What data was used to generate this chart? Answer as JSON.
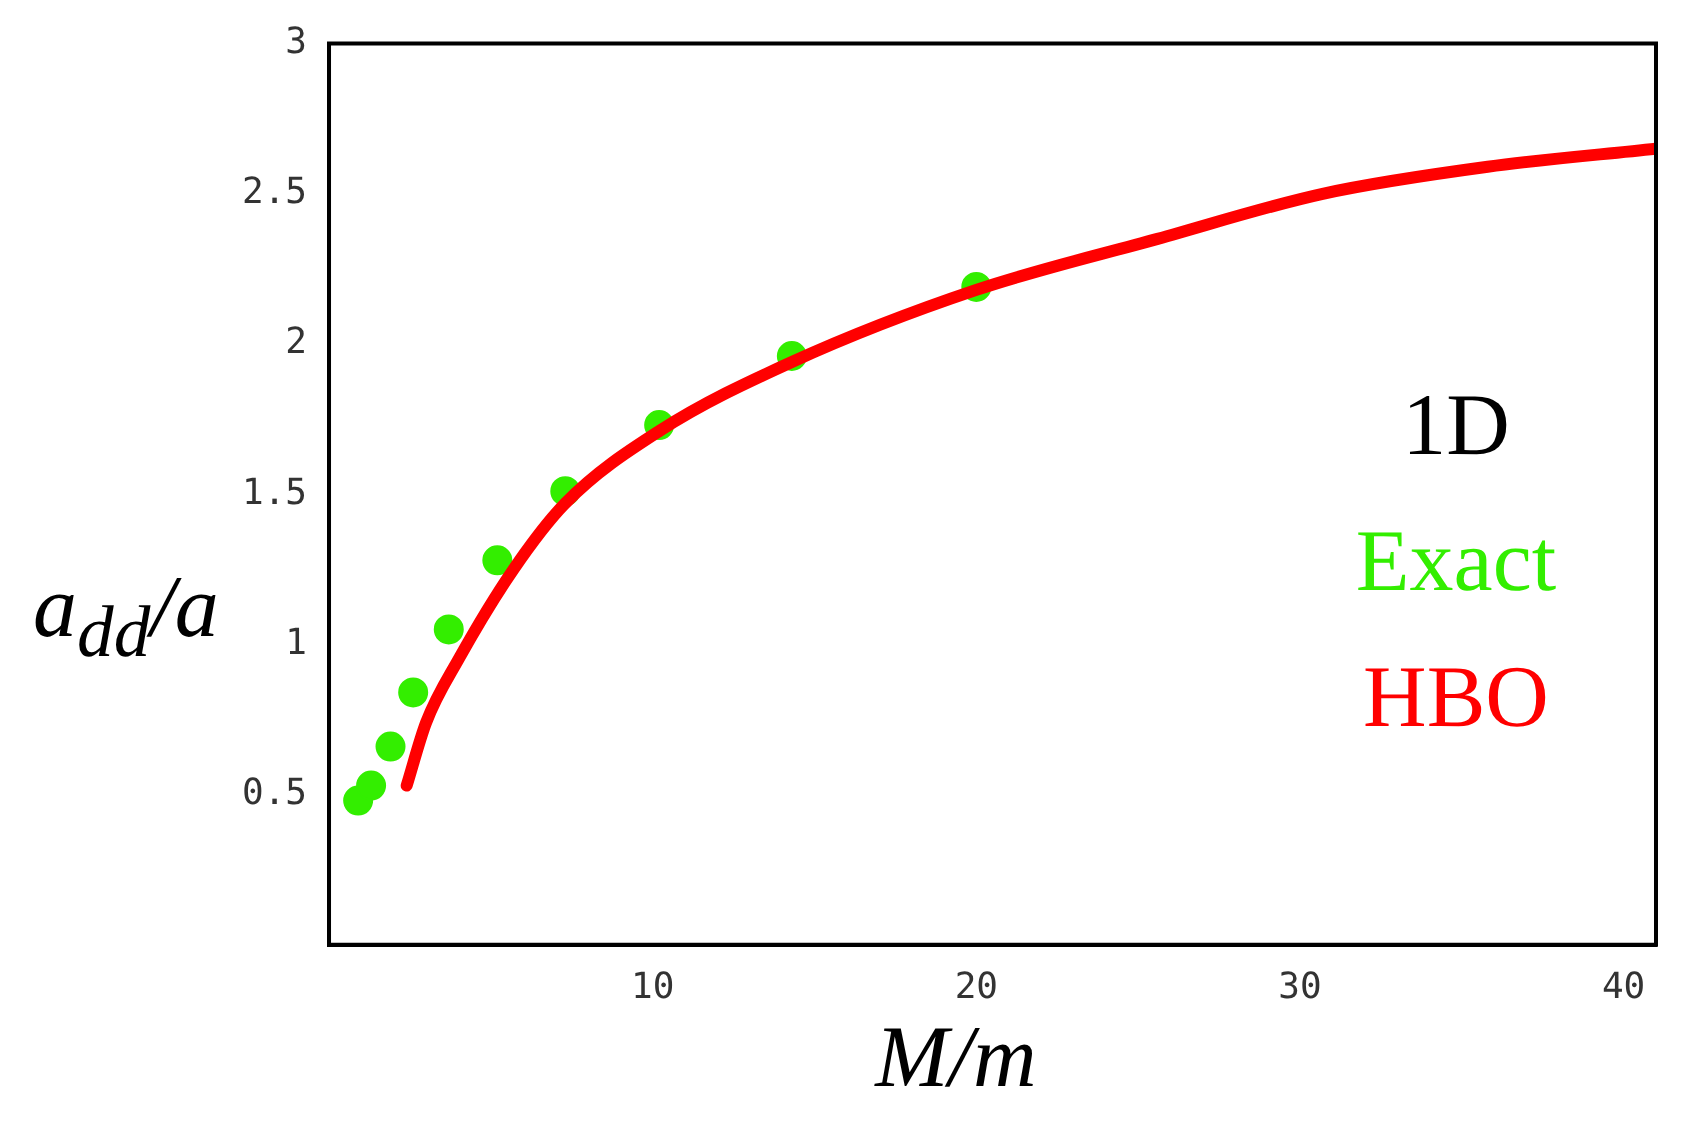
{
  "chart_data": {
    "type": "scatter",
    "xlabel": "M/m",
    "ylabel": "a$_{dd}$/a",
    "legend_title": "1D",
    "legend": "right",
    "grid": false,
    "xlim": [
      0,
      41
    ],
    "xticks": [
      10,
      20,
      30,
      40
    ],
    "ylim": [
      0,
      3
    ],
    "yticks": [
      0.5,
      1,
      1.5,
      2,
      2.5,
      3
    ],
    "series": [
      {
        "name": "Exact",
        "color": "#33ee00",
        "marker": "circle",
        "x": [
          0.9,
          1.3,
          1.9,
          2.6,
          3.7,
          5.2,
          7.3,
          10.2,
          14.3,
          20
        ],
        "values": [
          0.48,
          0.53,
          0.66,
          0.84,
          1.05,
          1.28,
          1.51,
          1.73,
          1.96,
          2.19
        ]
      },
      {
        "name": "HBO",
        "type": "line",
        "color": "#ff0000",
        "marker": "none",
        "line_style": "solid",
        "x": [
          2.4,
          3,
          4,
          5.7,
          7.3,
          10.2,
          14.3,
          20,
          25.6,
          30.7,
          35.8,
          41
        ],
        "values": [
          0.53,
          0.74,
          0.95,
          1.25,
          1.47,
          1.71,
          1.94,
          2.18,
          2.35,
          2.5,
          2.59,
          2.65
        ]
      }
    ]
  }
}
